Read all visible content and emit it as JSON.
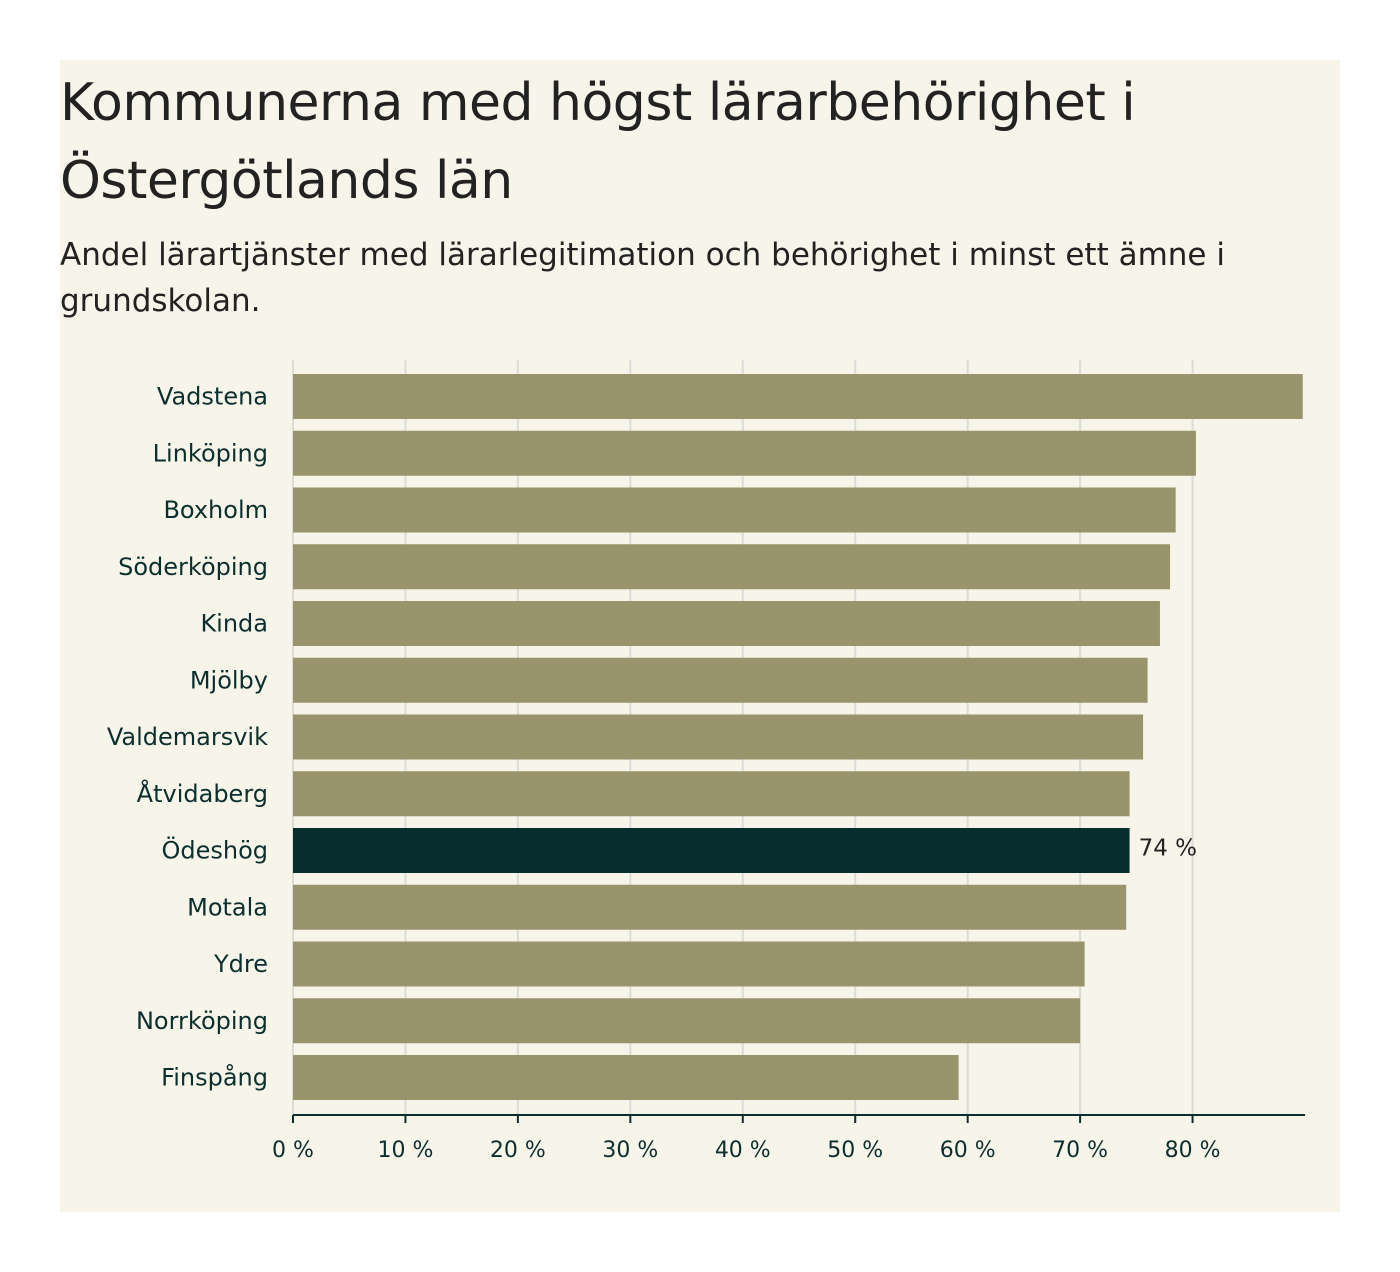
{
  "chart_data": {
    "type": "bar",
    "orientation": "horizontal",
    "title": "Kommunerna med högst lärarbehörighet i Östergötlands län",
    "subtitle": "Andel lärartjänster med lärarlegitimation och behörighet i minst ett ämne i grundskolan.",
    "categories": [
      "Vadstena",
      "Linköping",
      "Boxholm",
      "Söderköping",
      "Kinda",
      "Mjölby",
      "Valdemarsvik",
      "Åtvidaberg",
      "Ödeshög",
      "Motala",
      "Ydre",
      "Norrköping",
      "Finspång"
    ],
    "values": [
      89.8,
      80.3,
      78.5,
      78.0,
      77.1,
      76.0,
      75.6,
      74.4,
      74.4,
      74.1,
      70.4,
      70.0,
      59.2
    ],
    "highlight": "Ödeshög",
    "highlight_label": "74 %",
    "xlim": [
      0,
      90
    ],
    "ticks": [
      0,
      10,
      20,
      30,
      40,
      50,
      60,
      70,
      80
    ],
    "tick_labels": [
      "0 %",
      "10 %",
      "20 %",
      "30 %",
      "40 %",
      "50 %",
      "60 %",
      "70 %",
      "80 %"
    ],
    "grid": true,
    "colors": {
      "bar": "#99946b",
      "highlight": "#062e2e",
      "grid": "#dcdcd7",
      "axis": "#0b2f2e",
      "background": "#f7f5ea"
    }
  }
}
